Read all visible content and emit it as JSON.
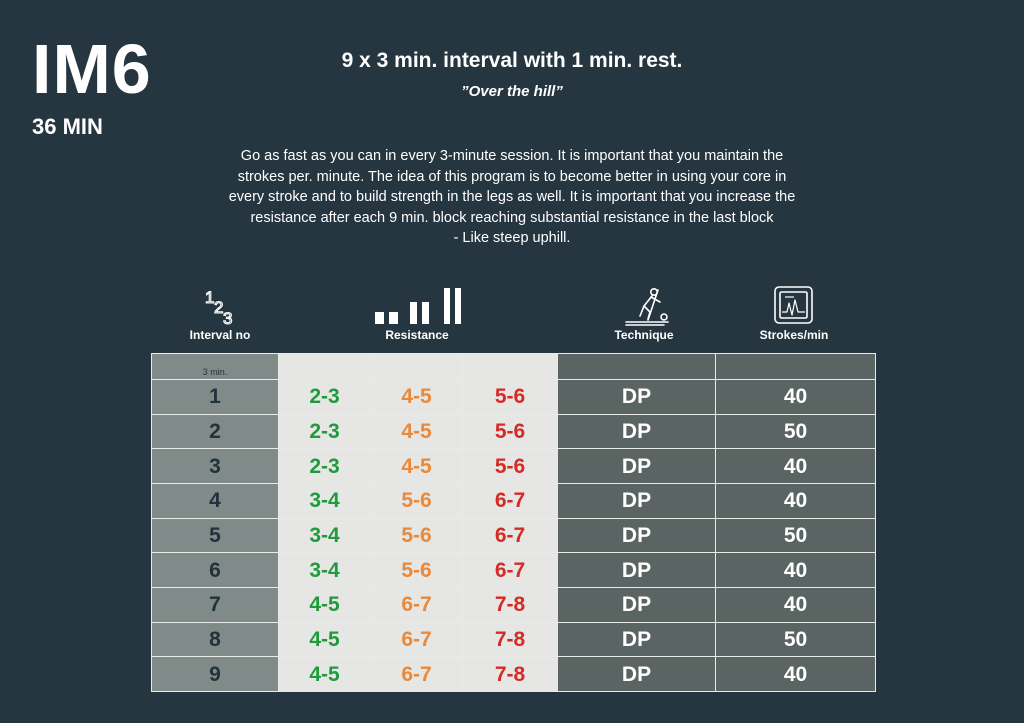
{
  "program": {
    "code": "IM6",
    "duration": "36 MIN"
  },
  "title": "9 x 3 min. interval with 1 min. rest.",
  "subtitle": "”Over the hill”",
  "description": [
    "Go as fast as you can in every 3-minute session. It is important that you maintain the",
    "strokes per. minute. The idea of this program is to become better in using your core in",
    "every stroke and to build strength in the legs as well. It is important that you increase the",
    "resistance after each 9 min. block reaching substantial resistance in the last block",
    "- Like steep uphill."
  ],
  "headers": {
    "interval": "Interval no",
    "resistance": "Resistance",
    "technique": "Technique",
    "strokes": "Strokes/min"
  },
  "icons": {
    "interval": "numbers-123-icon",
    "resistance": "resistance-bars-icon",
    "technique": "skier-double-poling-icon",
    "strokes": "heart-monitor-icon"
  },
  "table": {
    "interval_unit": "3 min.",
    "rows": [
      {
        "interval": "1",
        "res_low": "2-3",
        "res_mid": "4-5",
        "res_high": "5-6",
        "technique": "DP",
        "strokes": "40"
      },
      {
        "interval": "2",
        "res_low": "2-3",
        "res_mid": "4-5",
        "res_high": "5-6",
        "technique": "DP",
        "strokes": "50"
      },
      {
        "interval": "3",
        "res_low": "2-3",
        "res_mid": "4-5",
        "res_high": "5-6",
        "technique": "DP",
        "strokes": "40"
      },
      {
        "interval": "4",
        "res_low": "3-4",
        "res_mid": "5-6",
        "res_high": "6-7",
        "technique": "DP",
        "strokes": "40"
      },
      {
        "interval": "5",
        "res_low": "3-4",
        "res_mid": "5-6",
        "res_high": "6-7",
        "technique": "DP",
        "strokes": "50"
      },
      {
        "interval": "6",
        "res_low": "3-4",
        "res_mid": "5-6",
        "res_high": "6-7",
        "technique": "DP",
        "strokes": "40"
      },
      {
        "interval": "7",
        "res_low": "4-5",
        "res_mid": "6-7",
        "res_high": "7-8",
        "technique": "DP",
        "strokes": "40"
      },
      {
        "interval": "8",
        "res_low": "4-5",
        "res_mid": "6-7",
        "res_high": "7-8",
        "technique": "DP",
        "strokes": "50"
      },
      {
        "interval": "9",
        "res_low": "4-5",
        "res_mid": "6-7",
        "res_high": "7-8",
        "technique": "DP",
        "strokes": "40"
      }
    ]
  },
  "colors": {
    "background": "#253640",
    "low_resistance": "#1f9a3c",
    "mid_resistance": "#e8893b",
    "high_resistance": "#d52b27"
  }
}
